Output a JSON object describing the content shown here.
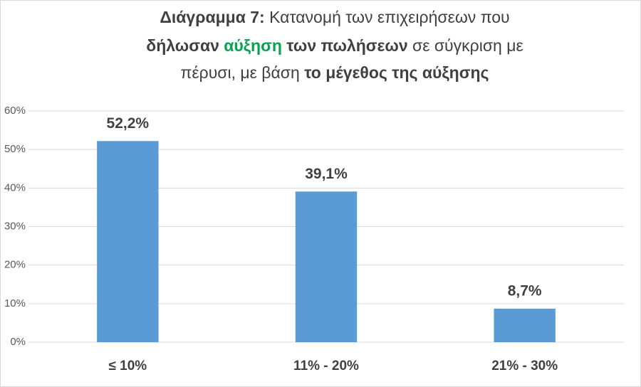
{
  "chart_data": {
    "type": "bar",
    "title": [
      [
        {
          "text": "Διάγραμμα 7:",
          "bold": true
        },
        {
          "text": " Κατανομή των επιχειρήσεων που",
          "bold": false
        }
      ],
      [
        {
          "text": "δήλωσαν ",
          "bold": true
        },
        {
          "text": "αύξηση",
          "bold": true,
          "color": "#00a650"
        },
        {
          "text": " των πωλήσεων",
          "bold": true
        },
        {
          "text": " σε σύγκριση με",
          "bold": false
        }
      ],
      [
        {
          "text": "πέρυσι, με βάση ",
          "bold": false
        },
        {
          "text": "το μέγεθος της αύξησης",
          "bold": true
        }
      ]
    ],
    "categories": [
      "≤ 10%",
      "11% - 20%",
      "21% - 30%"
    ],
    "values": [
      52.2,
      39.1,
      8.7
    ],
    "value_labels": [
      "52,2%",
      "39,1%",
      "8,7%"
    ],
    "color": "#5b9bd5",
    "ylim": [
      0,
      60
    ],
    "yticks": [
      {
        "value": 0,
        "label": "0%"
      },
      {
        "value": 10,
        "label": "10%"
      },
      {
        "value": 20,
        "label": "20%"
      },
      {
        "value": 30,
        "label": "30%"
      },
      {
        "value": 40,
        "label": "40%"
      },
      {
        "value": 50,
        "label": "50%"
      },
      {
        "value": 60,
        "label": "60%"
      }
    ],
    "grid": true
  }
}
